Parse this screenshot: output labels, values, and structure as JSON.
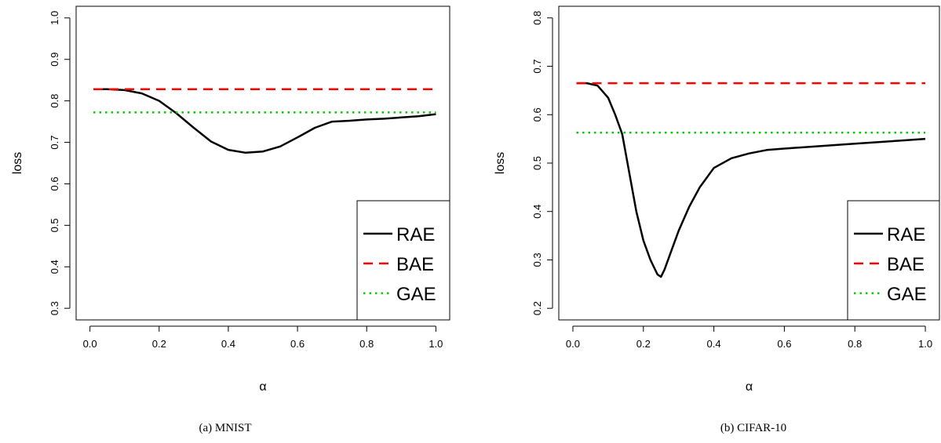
{
  "chart_data": [
    {
      "type": "line",
      "caption": "(a) MNIST",
      "xlabel": "α",
      "ylabel": "loss",
      "xlim": [
        0.0,
        1.0
      ],
      "ylim": [
        0.3,
        1.0
      ],
      "xticks": [
        "0.0",
        "0.2",
        "0.4",
        "0.6",
        "0.8",
        "1.0"
      ],
      "yticks": [
        "0.3",
        "0.4",
        "0.5",
        "0.6",
        "0.7",
        "0.8",
        "0.9",
        "1.0"
      ],
      "legend_position": "bottom-right",
      "grid": false,
      "series": [
        {
          "name": "RAE",
          "style": "solid",
          "color": "#000000",
          "x": [
            0.01,
            0.05,
            0.1,
            0.15,
            0.2,
            0.25,
            0.3,
            0.35,
            0.4,
            0.45,
            0.5,
            0.55,
            0.6,
            0.65,
            0.7,
            0.75,
            0.8,
            0.85,
            0.9,
            0.95,
            1.0
          ],
          "y": [
            0.828,
            0.828,
            0.826,
            0.818,
            0.8,
            0.77,
            0.735,
            0.702,
            0.682,
            0.675,
            0.678,
            0.69,
            0.712,
            0.735,
            0.75,
            0.752,
            0.755,
            0.757,
            0.76,
            0.763,
            0.768
          ]
        },
        {
          "name": "BAE",
          "style": "dashed",
          "color": "#ff0000",
          "x": [
            0.01,
            1.0
          ],
          "y": [
            0.828,
            0.828
          ]
        },
        {
          "name": "GAE",
          "style": "dotted",
          "color": "#00cc00",
          "x": [
            0.01,
            1.0
          ],
          "y": [
            0.772,
            0.772
          ]
        }
      ]
    },
    {
      "type": "line",
      "caption": "(b) CIFAR-10",
      "xlabel": "α",
      "ylabel": "loss",
      "xlim": [
        0.0,
        1.0
      ],
      "ylim": [
        0.2,
        0.8
      ],
      "xticks": [
        "0.0",
        "0.2",
        "0.4",
        "0.6",
        "0.8",
        "1.0"
      ],
      "yticks": [
        "0.2",
        "0.3",
        "0.4",
        "0.5",
        "0.6",
        "0.7",
        "0.8"
      ],
      "legend_position": "bottom-right",
      "grid": false,
      "series": [
        {
          "name": "RAE",
          "style": "solid",
          "color": "#000000",
          "x": [
            0.01,
            0.04,
            0.07,
            0.1,
            0.12,
            0.14,
            0.16,
            0.18,
            0.2,
            0.22,
            0.24,
            0.25,
            0.26,
            0.28,
            0.3,
            0.33,
            0.36,
            0.4,
            0.45,
            0.5,
            0.55,
            0.6,
            0.7,
            0.8,
            0.9,
            1.0
          ],
          "y": [
            0.665,
            0.665,
            0.66,
            0.635,
            0.6,
            0.56,
            0.48,
            0.4,
            0.34,
            0.3,
            0.27,
            0.265,
            0.28,
            0.32,
            0.36,
            0.41,
            0.45,
            0.49,
            0.51,
            0.52,
            0.527,
            0.53,
            0.535,
            0.54,
            0.545,
            0.55
          ]
        },
        {
          "name": "BAE",
          "style": "dashed",
          "color": "#ff0000",
          "x": [
            0.01,
            1.0
          ],
          "y": [
            0.665,
            0.665
          ]
        },
        {
          "name": "GAE",
          "style": "dotted",
          "color": "#00cc00",
          "x": [
            0.01,
            1.0
          ],
          "y": [
            0.563,
            0.563
          ]
        }
      ]
    }
  ]
}
